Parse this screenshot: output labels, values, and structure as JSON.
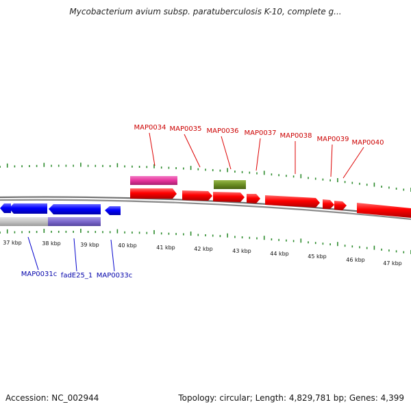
{
  "title": "Mycobacterium avium subsp. paratuberculosis K-10, complete g...",
  "footer": {
    "accession": "Accession: NC_002944",
    "summary": "Topology: circular; Length: 4,829,781 bp; Genes: 4,399"
  },
  "colors": {
    "forward_cds": "#ff0000",
    "reverse_cds": "#0000ff",
    "forward_gene_highlight": "#e6339c",
    "forward_gene_other": "#6b8e23",
    "reverse_gene": "#7b68cc",
    "reverse_gene_other": "#bdbdbd",
    "backbone": "#777777",
    "ticks": "#2a8a2a",
    "forward_label": "#cc0000",
    "reverse_label": "#0000aa"
  },
  "kbp_ticks": [
    "37 kbp",
    "38 kbp",
    "39 kbp",
    "40 kbp",
    "41 kbp",
    "42 kbp",
    "43 kbp",
    "44 kbp",
    "45 kbp",
    "46 kbp",
    "47 kbp"
  ],
  "forward_gene_labels": [
    "MAP0034",
    "MAP0035",
    "MAP0036",
    "MAP0037",
    "MAP0038",
    "MAP0039",
    "MAP0040"
  ],
  "reverse_gene_labels": [
    "MAP0031c",
    "fadE25_1",
    "MAP0033c"
  ]
}
